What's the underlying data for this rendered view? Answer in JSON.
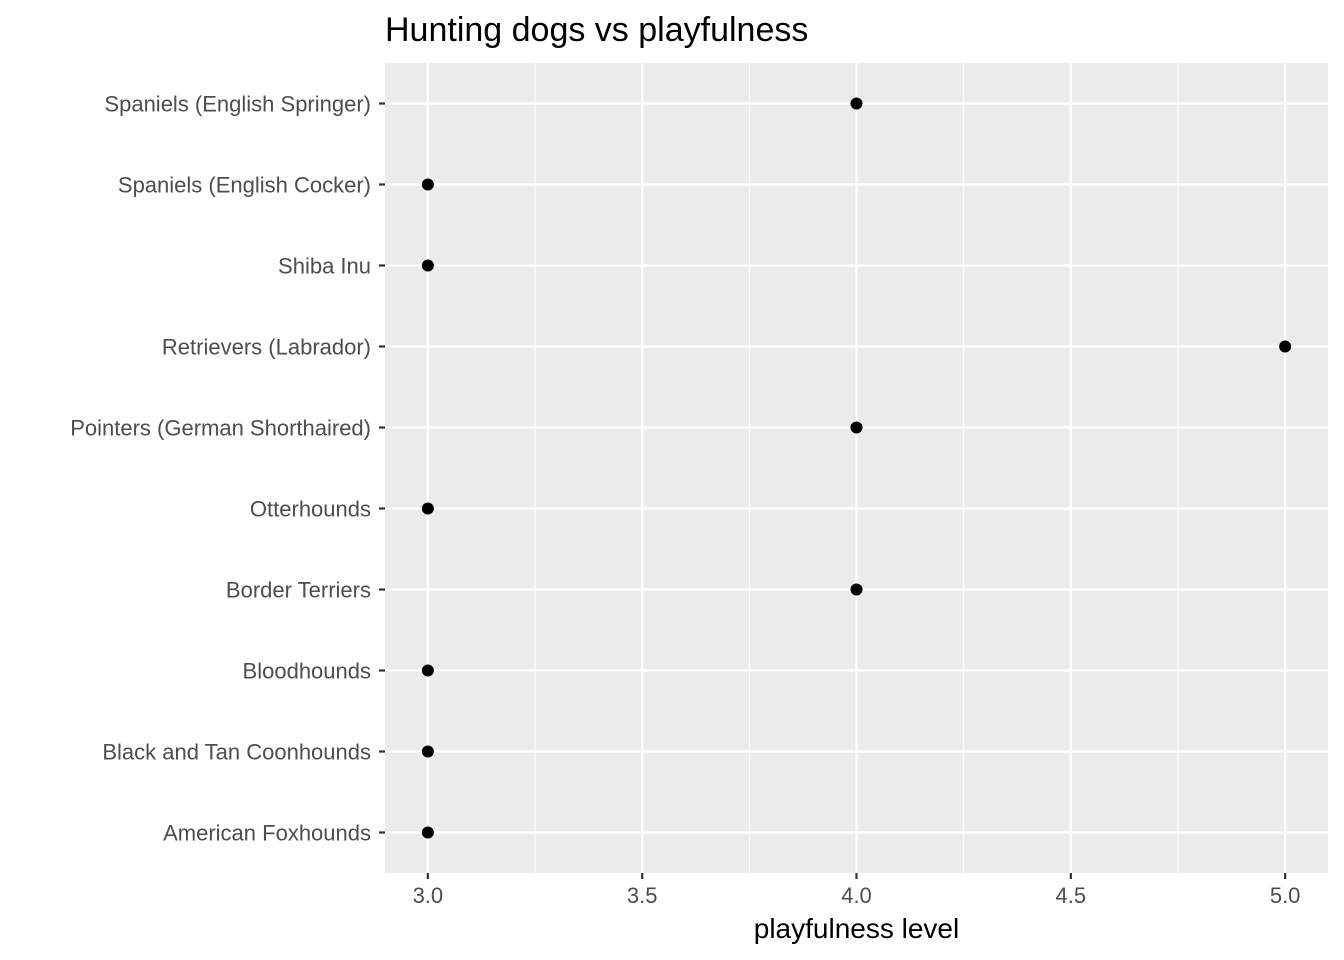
{
  "chart_data": {
    "type": "scatter",
    "title": "Hunting dogs vs playfulness",
    "xlabel": "playfulness level",
    "ylabel": "",
    "xlim": [
      2.9,
      5.1
    ],
    "xticks": [
      "3.0",
      "3.5",
      "4.0",
      "4.5",
      "5.0"
    ],
    "categories": [
      "American Foxhounds",
      "Black and Tan Coonhounds",
      "Bloodhounds",
      "Border Terriers",
      "Otterhounds",
      "Pointers (German Shorthaired)",
      "Retrievers (Labrador)",
      "Shiba Inu",
      "Spaniels (English Cocker)",
      "Spaniels (English Springer)"
    ],
    "values": [
      3,
      3,
      3,
      4,
      3,
      4,
      5,
      3,
      3,
      4
    ],
    "grid": true,
    "legend": "none",
    "colors": {
      "panel": "#ebebeb",
      "grid": "#ffffff",
      "point": "#000000",
      "tick": "#333333"
    }
  }
}
